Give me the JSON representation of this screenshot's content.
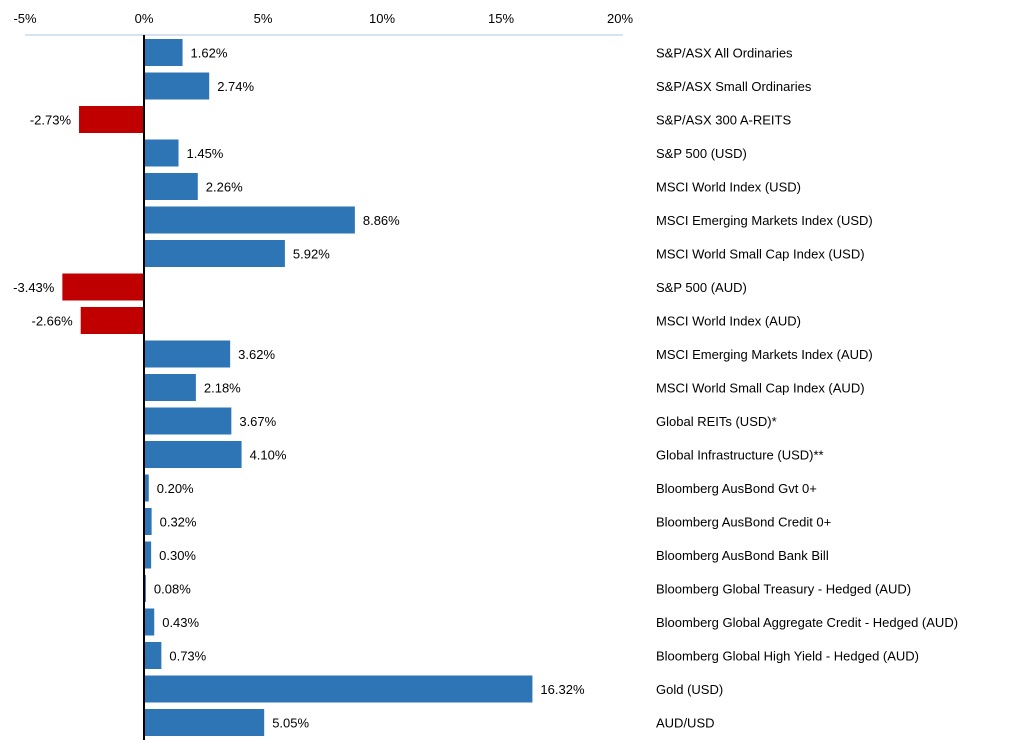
{
  "chart_data": {
    "type": "bar",
    "orientation": "horizontal",
    "title": "",
    "xlabel": "",
    "ylabel": "",
    "xlim": [
      -5,
      20
    ],
    "x_ticks": [
      -5,
      0,
      5,
      10,
      15,
      20
    ],
    "x_tick_labels": [
      "-5%",
      "0%",
      "5%",
      "10%",
      "15%",
      "20%"
    ],
    "grid": false,
    "legend": "none",
    "colors": {
      "positive": "#2E75B6",
      "negative": "#C00000",
      "axis": "#C9D9EE",
      "zero_line": "#000000"
    },
    "categories": [
      "S&P/ASX All Ordinaries",
      "S&P/ASX Small Ordinaries",
      "S&P/ASX 300 A-REITS",
      "S&P 500 (USD)",
      "MSCI World Index (USD)",
      "MSCI Emerging Markets Index (USD)",
      "MSCI World  Small Cap Index (USD)",
      "S&P 500 (AUD)",
      "MSCI World Index (AUD)",
      "MSCI Emerging Markets Index (AUD)",
      "MSCI World  Small Cap Index (AUD)",
      "Global REITs (USD)*",
      "Global Infrastructure (USD)**",
      "Bloomberg AusBond Gvt 0+",
      "Bloomberg AusBond Credit 0+",
      "Bloomberg AusBond Bank Bill",
      "Bloomberg Global Treasury - Hedged (AUD)",
      "Bloomberg Global Aggregate Credit - Hedged (AUD)",
      "Bloomberg Global High Yield - Hedged (AUD)",
      "Gold (USD)",
      "AUD/USD"
    ],
    "values": [
      1.62,
      2.74,
      -2.73,
      1.45,
      2.26,
      8.86,
      5.92,
      -3.43,
      -2.66,
      3.62,
      2.18,
      3.67,
      4.1,
      0.2,
      0.32,
      0.3,
      0.08,
      0.43,
      0.73,
      16.32,
      5.05
    ],
    "data_labels": [
      "1.62%",
      "2.74%",
      "-2.73%",
      "1.45%",
      "2.26%",
      "8.86%",
      "5.92%",
      "-3.43%",
      "-2.66%",
      "3.62%",
      "2.18%",
      "3.67%",
      "4.10%",
      "0.20%",
      "0.32%",
      "0.30%",
      "0.08%",
      "0.43%",
      "0.73%",
      "16.32%",
      "5.05%"
    ]
  }
}
